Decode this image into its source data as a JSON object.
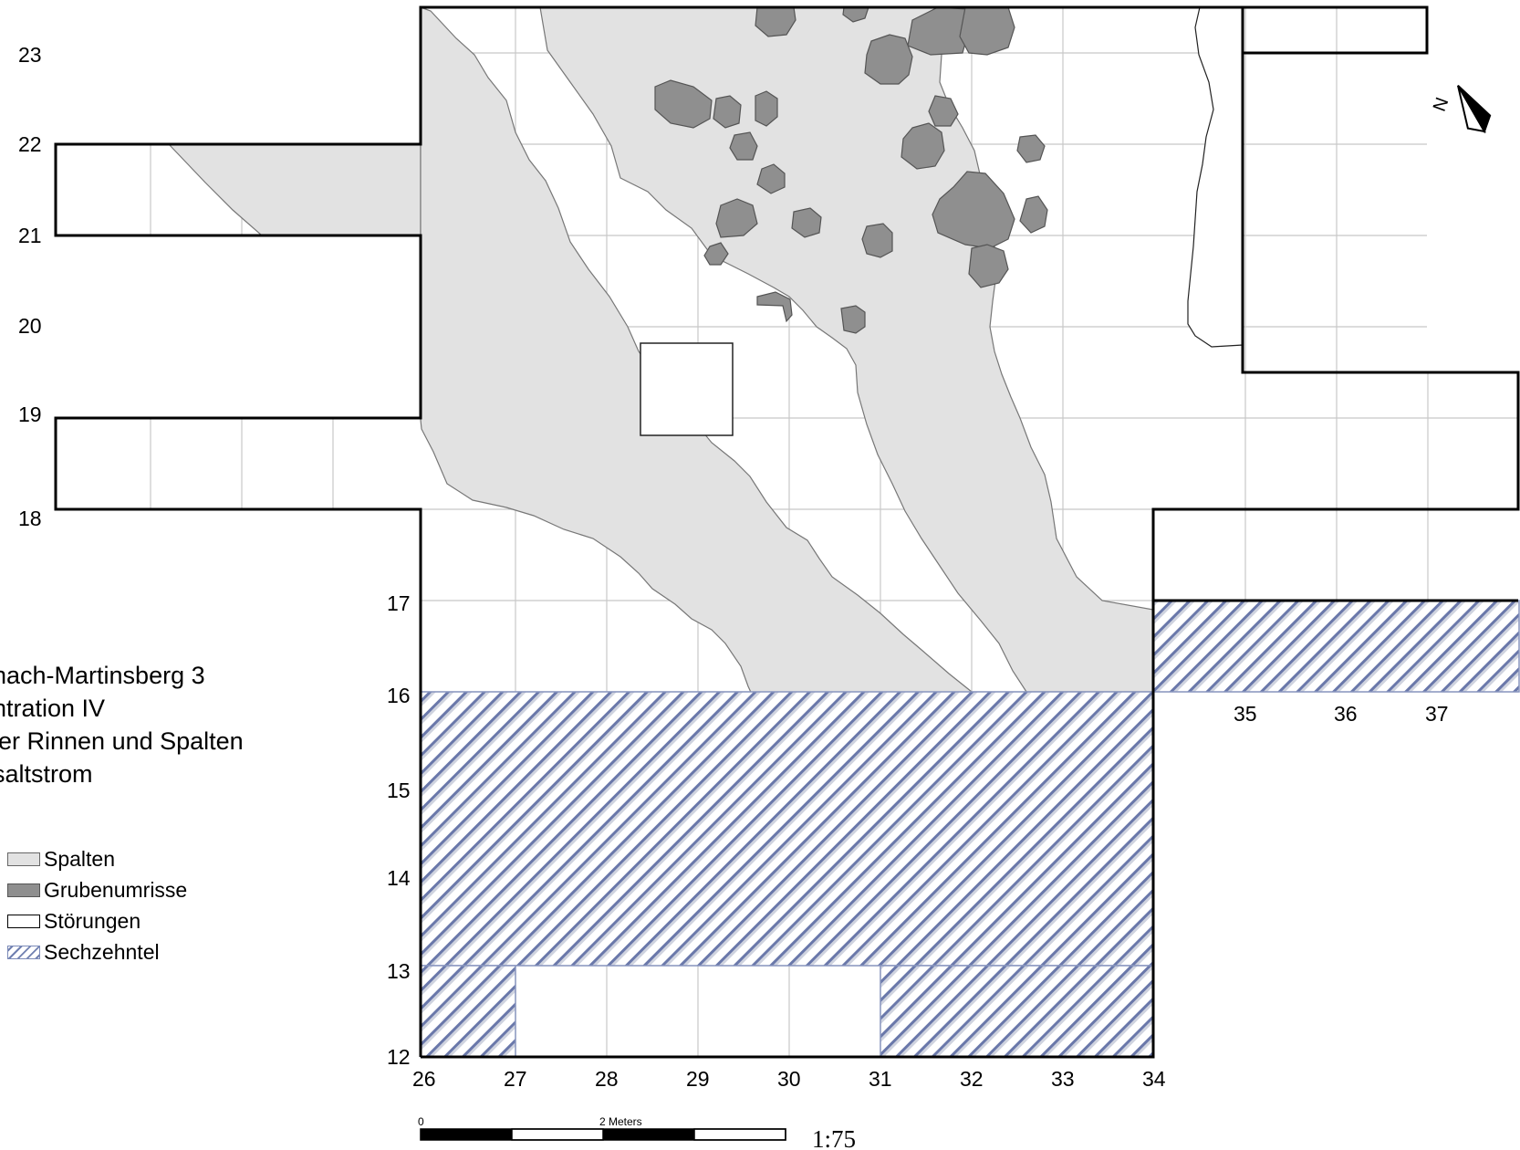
{
  "title_lines": [
    "nach-Martinsberg 3",
    "ntration IV",
    "ler Rinnen und Spalten",
    "saltstrom"
  ],
  "legend": [
    {
      "key": "spalten",
      "label": "Spalten",
      "color": "#e2e2e2"
    },
    {
      "key": "gruben",
      "label": "Grubenumrisse",
      "color": "#8f8f8f"
    },
    {
      "key": "stoerungen",
      "label": "Störungen",
      "color": "#ffffff"
    },
    {
      "key": "sechzehntel",
      "label": "Sechzehntel",
      "color": "#7080b0"
    }
  ],
  "grid_labels": {
    "rows_left": [
      "23",
      "22",
      "21",
      "20",
      "19",
      "18"
    ],
    "rows_center": [
      "17",
      "16",
      "15",
      "14",
      "13",
      "12"
    ],
    "cols_bottom": [
      "26",
      "27",
      "28",
      "29",
      "30",
      "31",
      "32",
      "33",
      "34"
    ],
    "cols_right": [
      "35",
      "36",
      "37"
    ]
  },
  "scale_bar": {
    "start_label": "0",
    "mid_label": "2 Meters",
    "ratio": "1:75"
  },
  "north_arrow": {
    "label": "N"
  }
}
